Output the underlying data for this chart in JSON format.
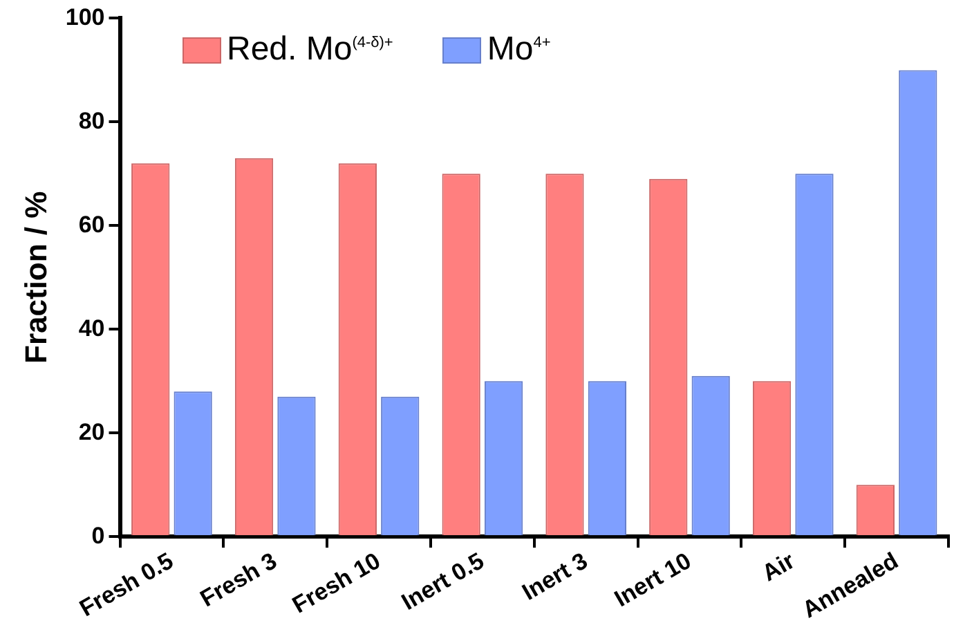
{
  "chart_data": {
    "type": "bar",
    "ylabel": "Fraction / %",
    "categories": [
      "Fresh 0.5",
      "Fresh 3",
      "Fresh 10",
      "Inert 0.5",
      "Inert 3",
      "Inert 10",
      "Air",
      "Annealed"
    ],
    "series": [
      {
        "name": "Red. Mo$^{(4-δ)+}$",
        "color": "#ff7f7f",
        "values": [
          72,
          73,
          72,
          70,
          70,
          69,
          30,
          10
        ]
      },
      {
        "name": "Mo$^{4+}$",
        "color": "#7f9fff",
        "values": [
          28,
          27,
          27,
          30,
          30,
          31,
          70,
          90
        ]
      }
    ],
    "ylim": [
      0,
      100
    ],
    "yticks": [
      0,
      20,
      40,
      60,
      80,
      100
    ],
    "grid": false,
    "legend": "top left"
  }
}
